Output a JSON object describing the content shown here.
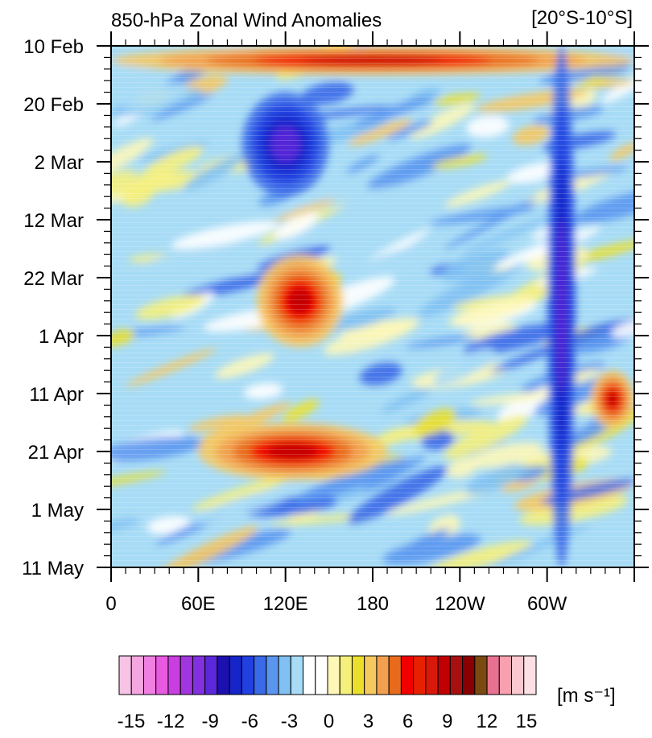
{
  "chart_data": {
    "type": "heatmap",
    "title": "850-hPa Zonal Wind Anomalies",
    "region": "[20°S-10°S]",
    "xlabel": "",
    "ylabel": "",
    "x_ticks": [
      "0",
      "60E",
      "120E",
      "180",
      "120W",
      "60W"
    ],
    "x_tick_lon": [
      0,
      60,
      120,
      180,
      240,
      300
    ],
    "xlim": [
      0,
      360
    ],
    "y_ticks": [
      "10 Feb",
      "20 Feb",
      "2 Mar",
      "12 Mar",
      "22 Mar",
      "1 Apr",
      "11 Apr",
      "21 Apr",
      "1 May",
      "11 May"
    ],
    "y_tick_day": [
      0,
      10,
      20,
      30,
      40,
      50,
      60,
      70,
      80,
      90
    ],
    "ylim": [
      0,
      90
    ],
    "colorbar": {
      "unit_label": "[m s⁻¹]",
      "tick_labels": [
        "-15",
        "-12",
        "-9",
        "-6",
        "-3",
        "0",
        "3",
        "6",
        "9",
        "12",
        "15"
      ],
      "levels": [
        -15,
        -12,
        -9,
        -6,
        -3,
        0,
        3,
        6,
        9,
        12,
        15
      ],
      "colors": [
        "#f7c3e6",
        "#f4a6e0",
        "#ef7fe0",
        "#e85ae0",
        "#c83ee0",
        "#a135e0",
        "#8230e0",
        "#5a28d8",
        "#1d10b0",
        "#1525c8",
        "#2040e0",
        "#3a6ae8",
        "#5a96ef",
        "#80c0f2",
        "#a8dcf6",
        "#ffffff",
        "#ffffff",
        "#fdf7b8",
        "#f5ef7c",
        "#eae02c",
        "#f6c860",
        "#f2a050",
        "#e86b1c",
        "#f20000",
        "#e82000",
        "#d81808",
        "#c00000",
        "#a81010",
        "#8a0000",
        "#7a4a10",
        "#e87090",
        "#f8a0b0",
        "#fcc8d0",
        "#fde0e4"
      ]
    },
    "anomaly_features": [
      {
        "sign": "positive",
        "lon_range": [
          0,
          360
        ],
        "day_range": [
          0,
          5
        ]
      },
      {
        "sign": "negative",
        "lon_range": [
          90,
          150
        ],
        "day_range": [
          8,
          26
        ]
      },
      {
        "sign": "positive",
        "lon_range": [
          100,
          160
        ],
        "day_range": [
          36,
          52
        ]
      },
      {
        "sign": "positive",
        "lon_range": [
          60,
          190
        ],
        "day_range": [
          65,
          75
        ]
      },
      {
        "sign": "negative",
        "lon_range": [
          300,
          320
        ],
        "day_range": [
          0,
          90
        ]
      },
      {
        "sign": "positive",
        "lon_range": [
          330,
          360
        ],
        "day_range": [
          56,
          66
        ]
      }
    ]
  }
}
